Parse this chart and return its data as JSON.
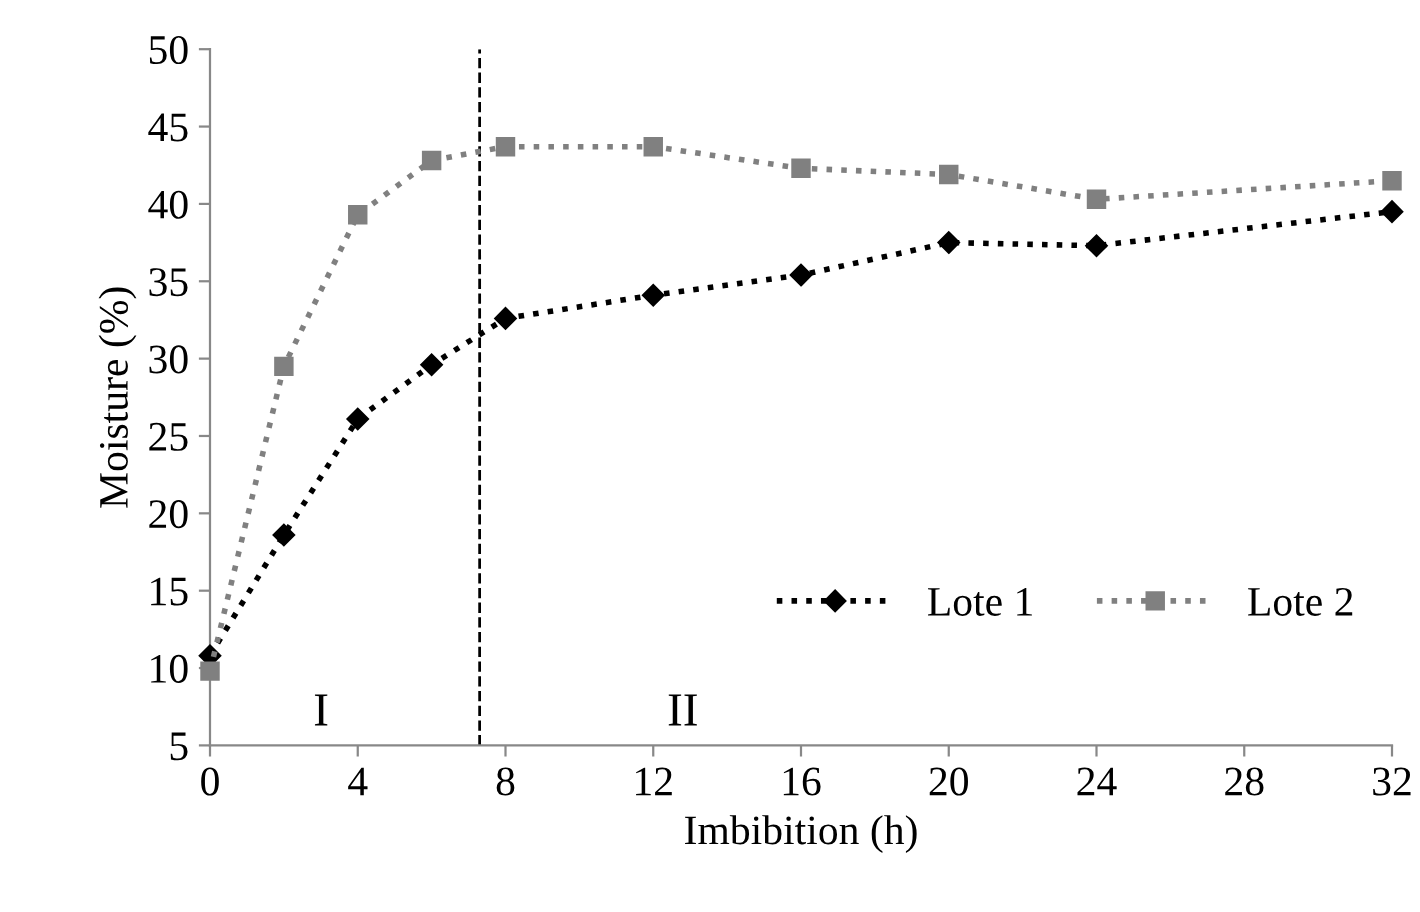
{
  "chart_data": {
    "type": "line",
    "xlabel": "Imbibition (h)",
    "ylabel": "Moisture (%)",
    "x": [
      0,
      2,
      4,
      6,
      8,
      12,
      16,
      20,
      24,
      32
    ],
    "series": [
      {
        "name": "Lote 1",
        "color": "#000000",
        "marker": "diamond",
        "values": [
          10.8,
          18.6,
          26.1,
          29.6,
          32.6,
          34.1,
          35.4,
          37.5,
          37.3,
          39.5
        ]
      },
      {
        "name": "Lote 2",
        "color": "#808080",
        "marker": "square",
        "values": [
          9.8,
          29.5,
          39.3,
          42.8,
          43.7,
          43.7,
          42.3,
          41.9,
          40.3,
          41.5
        ]
      }
    ],
    "line_style": "dotted",
    "xlim": [
      0,
      32
    ],
    "xticks": [
      0,
      4,
      8,
      12,
      16,
      20,
      24,
      28,
      32
    ],
    "ylim": [
      5,
      50
    ],
    "yticks": [
      5,
      10,
      15,
      20,
      25,
      30,
      35,
      40,
      45,
      50
    ],
    "ref_lines": [
      {
        "axis": "x",
        "value": 7.3,
        "color": "#000000",
        "line_style": "dashed"
      }
    ],
    "annotations": [
      "I",
      "II"
    ],
    "legend": "bottom right",
    "grid": false
  }
}
